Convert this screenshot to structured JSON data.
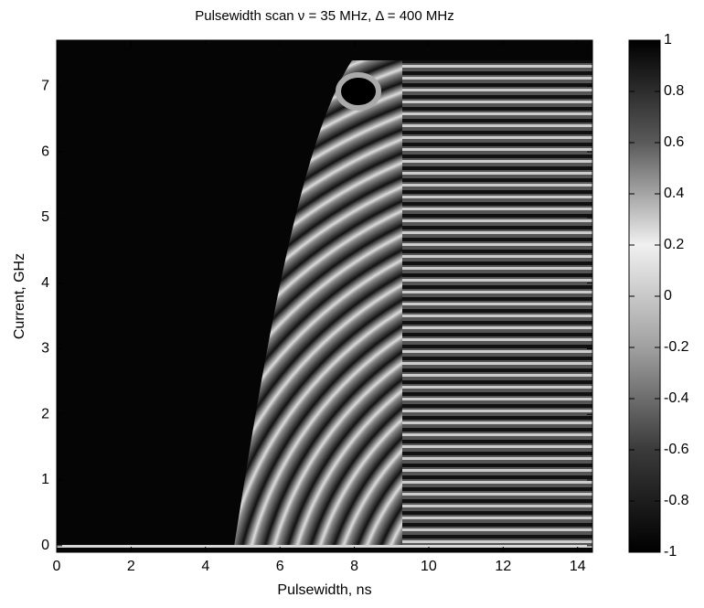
{
  "chart_data": {
    "type": "heatmap",
    "title": "Pulsewidth scan ν = 35 MHz, Δ = 400 MHz",
    "x_label": "Pulsewidth, ns",
    "y_label": "Current, GHz",
    "xlim": [
      0,
      14.4
    ],
    "xticks": [
      0,
      2,
      4,
      6,
      8,
      10,
      12,
      14
    ],
    "ylim": [
      -0.1,
      7.7
    ],
    "yticks": [
      0,
      1,
      2,
      3,
      4,
      5,
      6,
      7
    ],
    "colorbar": {
      "clim": [
        -1,
        1
      ],
      "ticks": [
        -1,
        -0.8,
        -0.6,
        -0.4,
        -0.2,
        0,
        0.2,
        0.4,
        0.6,
        0.8,
        1
      ],
      "colormap": [
        "#000000",
        "#5a5a5a",
        "#f0f0f0",
        "#a0a0a0",
        "#3a3a3a",
        "#000000"
      ]
    }
  }
}
